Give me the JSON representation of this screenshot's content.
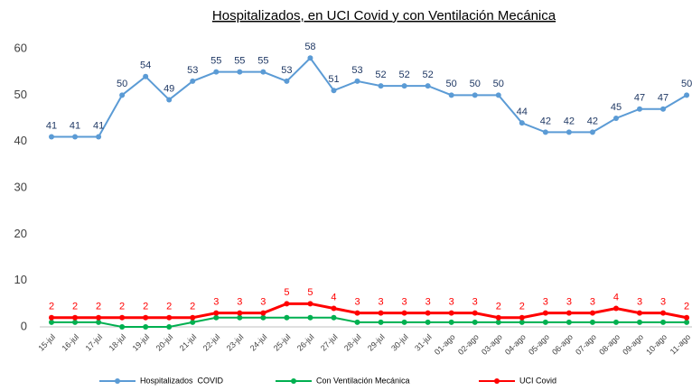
{
  "chart_data": {
    "type": "line",
    "title": "Hospitalizados, en UCI Covid y con Ventilación Mecánica",
    "categories": [
      "15-jul",
      "16-jul",
      "17-jul",
      "18-jul",
      "19-jul",
      "20-jul",
      "21-jul",
      "22-jul",
      "23-jul",
      "24-jul",
      "25-jul",
      "26-jul",
      "27-jul",
      "28-jul",
      "29-jul",
      "30-jul",
      "31-jul",
      "01-ago",
      "02-ago",
      "03-ago",
      "04-ago",
      "05-ago",
      "06-ago",
      "07-ago",
      "08-ago",
      "09-ago",
      "10-ago",
      "11-ago"
    ],
    "series": [
      {
        "name": "Hospitalizados  COVID",
        "color": "#5b9bd5",
        "label_color": "#1f3864",
        "show_labels": true,
        "values": [
          41,
          41,
          41,
          50,
          54,
          49,
          53,
          55,
          55,
          55,
          53,
          58,
          51,
          53,
          52,
          52,
          52,
          50,
          50,
          50,
          44,
          42,
          42,
          42,
          45,
          47,
          47,
          50
        ]
      },
      {
        "name": "Con Ventilación Mecánica",
        "color": "#00b050",
        "show_labels": false,
        "values": [
          1,
          1,
          1,
          0,
          0,
          0,
          1,
          2,
          2,
          2,
          2,
          2,
          2,
          1,
          1,
          1,
          1,
          1,
          1,
          1,
          1,
          1,
          1,
          1,
          1,
          1,
          1,
          1
        ]
      },
      {
        "name": "UCI Covid",
        "color": "#ff0000",
        "label_color": "#ff0000",
        "show_labels": true,
        "values": [
          2,
          2,
          2,
          2,
          2,
          2,
          2,
          3,
          3,
          3,
          5,
          5,
          4,
          3,
          3,
          3,
          3,
          3,
          3,
          2,
          2,
          3,
          3,
          3,
          4,
          3,
          3,
          2
        ]
      }
    ],
    "ylim": [
      0,
      60
    ],
    "yticks": [
      0,
      10,
      20,
      30,
      40,
      50,
      60
    ],
    "grid": false,
    "legend": "bottom"
  }
}
